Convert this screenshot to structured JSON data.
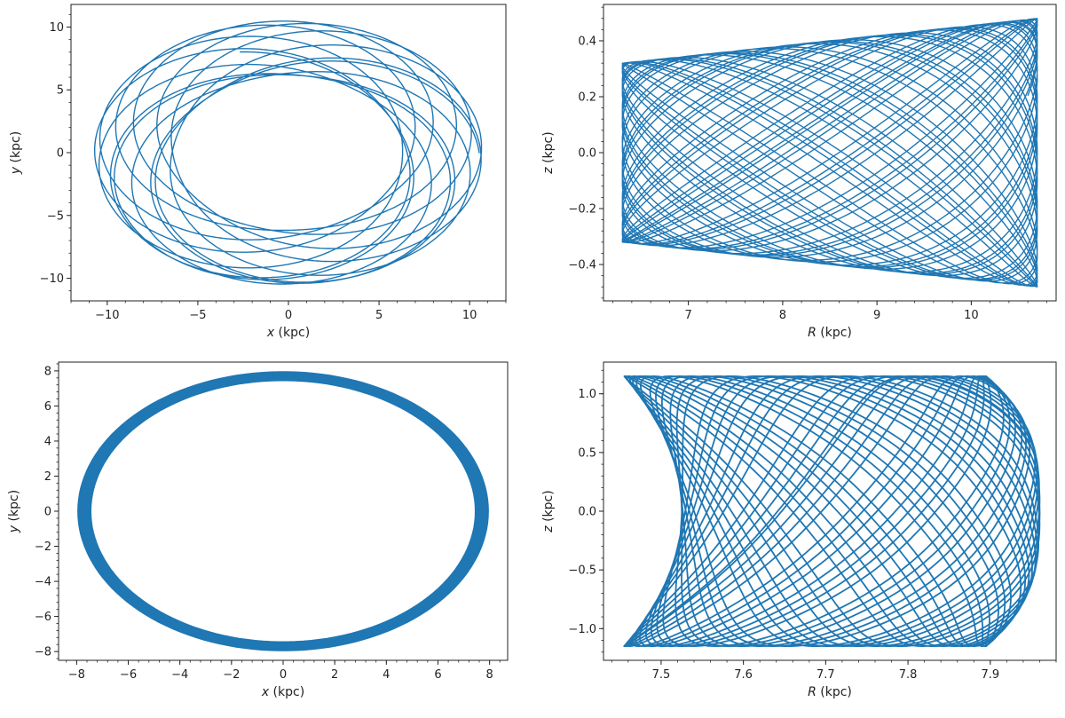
{
  "figure": {
    "series_color": "#1f77b4"
  },
  "chart_data": [
    {
      "id": "top-left",
      "type": "line",
      "title": "",
      "xlabel": {
        "var": "x",
        "unit": " (kpc)"
      },
      "ylabel": {
        "var": "y",
        "unit": " (kpc)"
      },
      "xlim": [
        -12,
        12
      ],
      "ylim": [
        -11.8,
        11.8
      ],
      "xticks": [
        -10,
        -5,
        0,
        5,
        10
      ],
      "yticks": [
        -10,
        -5,
        0,
        5,
        10
      ],
      "xtick_labels": [
        "−10",
        "−5",
        "0",
        "5",
        "10"
      ],
      "ytick_labels": [
        "−10",
        "−5",
        "0",
        "5",
        "10"
      ],
      "grid": false,
      "legend": "none",
      "orbit": {
        "kind": "rosette",
        "pericenter": 6.3,
        "apocenter": 10.7,
        "aspect_y": 0.98,
        "precession_per_period": 0.72
      }
    },
    {
      "id": "top-right",
      "type": "line",
      "title": "",
      "xlabel": {
        "var": "R",
        "unit": " (kpc)"
      },
      "ylabel": {
        "var": "z",
        "unit": " (kpc)"
      },
      "xlim": [
        6.1,
        10.9
      ],
      "ylim": [
        -0.53,
        0.53
      ],
      "xticks": [
        7,
        8,
        9,
        10
      ],
      "yticks": [
        -0.4,
        -0.2,
        0.0,
        0.2,
        0.4
      ],
      "xtick_labels": [
        "7",
        "8",
        "9",
        "10"
      ],
      "ytick_labels": [
        "−0.4",
        "−0.2",
        "0.0",
        "0.2",
        "0.4"
      ],
      "grid": false,
      "legend": "none",
      "orbit": {
        "kind": "meridional",
        "R_min": 6.3,
        "R_max": 10.7,
        "z_at_R_min": 0.32,
        "z_at_R_max": 0.48
      }
    },
    {
      "id": "bottom-left",
      "type": "line",
      "title": "",
      "xlabel": {
        "var": "x",
        "unit": " (kpc)"
      },
      "ylabel": {
        "var": "y",
        "unit": " (kpc)"
      },
      "xlim": [
        -8.7,
        8.7
      ],
      "ylim": [
        -8.5,
        8.5
      ],
      "xticks": [
        -8,
        -6,
        -4,
        -2,
        0,
        2,
        4,
        6,
        8
      ],
      "yticks": [
        -8,
        -6,
        -4,
        -2,
        0,
        2,
        4,
        6,
        8
      ],
      "xtick_labels": [
        "−8",
        "−6",
        "−4",
        "−2",
        "0",
        "2",
        "4",
        "6",
        "8"
      ],
      "ytick_labels": [
        "−8",
        "−6",
        "−4",
        "−2",
        "0",
        "2",
        "4",
        "6",
        "8"
      ],
      "grid": false,
      "legend": "none",
      "orbit": {
        "kind": "ring",
        "pericenter": 7.45,
        "apocenter": 7.95
      }
    },
    {
      "id": "bottom-right",
      "type": "line",
      "title": "",
      "xlabel": {
        "var": "R",
        "unit": " (kpc)"
      },
      "ylabel": {
        "var": "z",
        "unit": " (kpc)"
      },
      "xlim": [
        7.43,
        7.98
      ],
      "ylim": [
        -1.27,
        1.27
      ],
      "xticks": [
        7.5,
        7.6,
        7.7,
        7.8,
        7.9
      ],
      "yticks": [
        -1.0,
        -0.5,
        0.0,
        0.5,
        1.0
      ],
      "xtick_labels": [
        "7.5",
        "7.6",
        "7.7",
        "7.8",
        "7.9"
      ],
      "ytick_labels": [
        "−1.0",
        "−0.5",
        "0.0",
        "0.5",
        "1.0"
      ],
      "grid": false,
      "legend": "none",
      "orbit": {
        "kind": "meridional-curved",
        "R_min": 7.455,
        "R_max": 7.96,
        "z_max": 1.15
      }
    }
  ]
}
